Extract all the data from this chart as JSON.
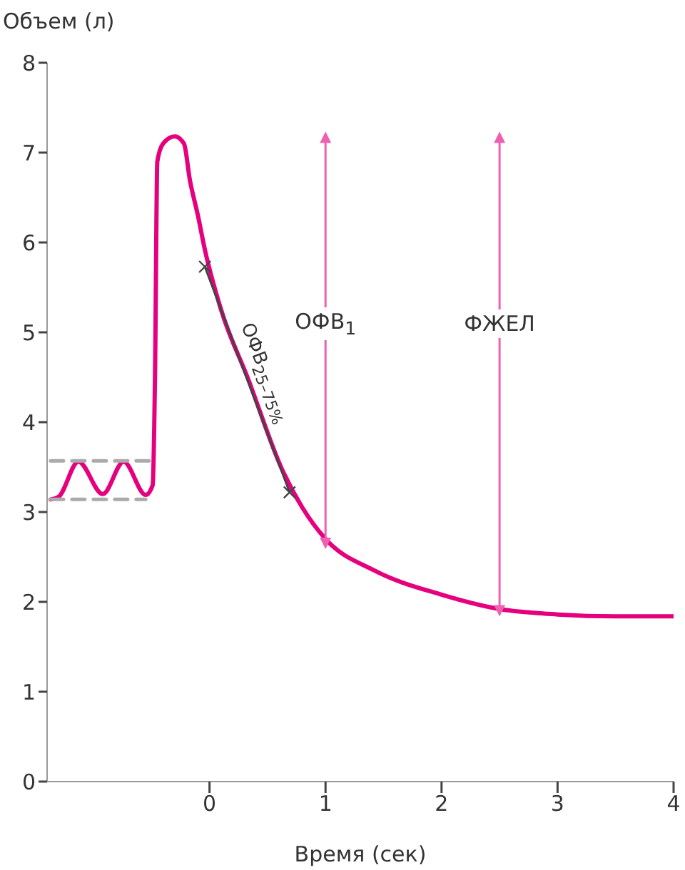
{
  "chart_data": {
    "type": "line",
    "xlabel": "Время (сек)",
    "ylabel": "Объем (л)",
    "xlim": [
      -1.4,
      4
    ],
    "xticks": [
      0,
      1,
      2,
      3,
      4
    ],
    "ylim": [
      0,
      8
    ],
    "yticks": [
      0,
      1,
      2,
      3,
      4,
      5,
      6,
      7,
      8
    ],
    "grid": false,
    "legend": false,
    "series": [
      {
        "color": "#e5007d",
        "x": [
          -1.37,
          -1.3,
          -1.13,
          -0.92,
          -0.74,
          -0.55,
          -0.49,
          -0.47,
          -0.45,
          -0.4,
          -0.3,
          -0.22,
          -0.17,
          -0.1,
          -0.04,
          0.1,
          0.33,
          0.63,
          0.8,
          1.0,
          1.42,
          2.0,
          2.5,
          3.0,
          3.5,
          4.0
        ],
        "values": [
          3.14,
          3.17,
          3.56,
          3.2,
          3.56,
          3.19,
          3.3,
          4.5,
          6.9,
          7.1,
          7.18,
          7.1,
          6.7,
          6.3,
          5.92,
          5.25,
          4.49,
          3.46,
          3.05,
          2.7,
          2.35,
          2.08,
          1.92,
          1.86,
          1.84,
          1.84
        ]
      },
      {
        "color": "#aaaaaa",
        "line_style": "dashed",
        "x": [
          -1.37,
          -0.5
        ],
        "values": [
          3.57,
          3.57
        ]
      },
      {
        "color": "#aaaaaa",
        "line_style": "dashed",
        "x": [
          -1.37,
          -0.55
        ],
        "values": [
          3.14,
          3.14
        ]
      },
      {
        "color": "#444444",
        "marker": "cross",
        "x": [
          -0.04,
          0.69
        ],
        "values": [
          5.73,
          3.22
        ]
      },
      {
        "color": "#f060b0",
        "marker": "triangle",
        "x": [
          1,
          1
        ],
        "values": [
          7.17,
          2.65
        ]
      },
      {
        "color": "#f060b0",
        "marker": "triangle",
        "x": [
          2.5,
          2.5
        ],
        "values": [
          7.17,
          1.9
        ]
      }
    ],
    "annotations": [
      "ОФВ$_{25–75%}$",
      {
        "text": "ОФВ$_{1}$",
        "x": 1,
        "y": 5.1
      },
      {
        "text": "ФЖЕЛ",
        "x": 2.5,
        "y": 5.1
      }
    ]
  }
}
